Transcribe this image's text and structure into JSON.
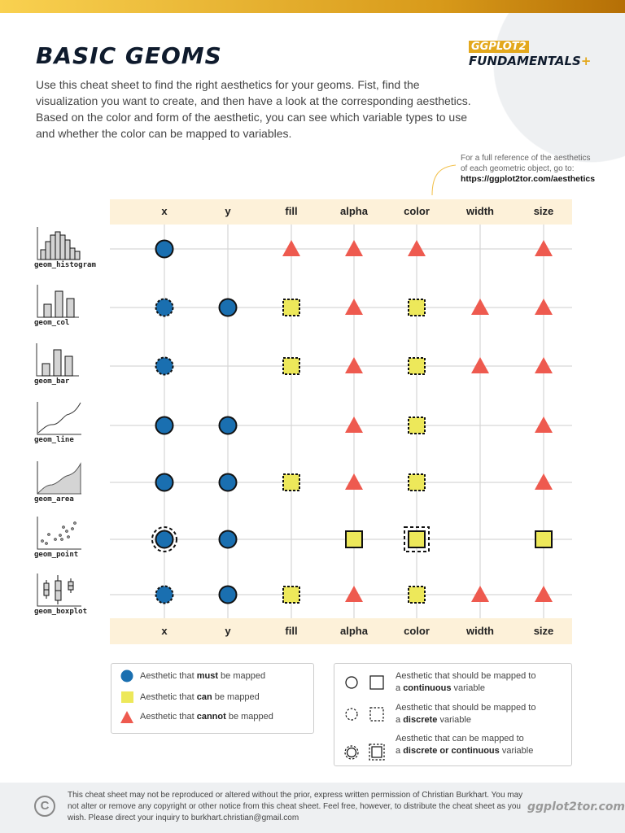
{
  "header": {
    "title": "BASIC GEOMS",
    "intro": "Use this cheat sheet to find the right aesthetics for your geoms. Fist, find the visualization you want to create, and then have a look at the corresponding aesthetics. Based on the color and form of the aesthetic, you can see which variable types to use and whether the color can be mapped to variables.",
    "logo_top": "GGPLOT2",
    "logo_bottom": "FUNDAMENTALS",
    "logo_plus": "+",
    "ref_line1": "For a full reference of the aesthetics",
    "ref_line2": "of each geometric object, go to:",
    "ref_url": "https://ggplot2tor.com/aesthetics"
  },
  "colors": {
    "must": "#1a6fb0",
    "can": "#ede85a",
    "cannot": "#ee5a4f",
    "header_band": "#fdf1d9",
    "accent": "#e3a81d"
  },
  "columns": [
    "x",
    "y",
    "fill",
    "alpha",
    "color",
    "width",
    "size"
  ],
  "rows": [
    {
      "geom": "geom_histogram",
      "icon": "histogram-icon",
      "cells": [
        "must:continuous",
        "",
        "cannot",
        "cannot",
        "cannot",
        "",
        "cannot"
      ]
    },
    {
      "geom": "geom_col",
      "icon": "column-chart-icon",
      "cells": [
        "must:discrete",
        "must:continuous",
        "can:discrete",
        "cannot",
        "can:discrete",
        "cannot",
        "cannot"
      ]
    },
    {
      "geom": "geom_bar",
      "icon": "bar-chart-icon",
      "cells": [
        "must:discrete",
        "",
        "can:discrete",
        "cannot",
        "can:discrete",
        "cannot",
        "cannot"
      ]
    },
    {
      "geom": "geom_line",
      "icon": "line-chart-icon",
      "cells": [
        "must:continuous",
        "must:continuous",
        "",
        "cannot",
        "can:discrete",
        "",
        "cannot"
      ]
    },
    {
      "geom": "geom_area",
      "icon": "area-chart-icon",
      "cells": [
        "must:continuous",
        "must:continuous",
        "can:discrete",
        "cannot",
        "can:discrete",
        "",
        "cannot"
      ]
    },
    {
      "geom": "geom_point",
      "icon": "scatter-plot-icon",
      "cells": [
        "must:both",
        "must:continuous",
        "",
        "can:continuous",
        "can:both",
        "",
        "can:continuous"
      ]
    },
    {
      "geom": "geom_boxplot",
      "icon": "boxplot-icon",
      "cells": [
        "must:discrete",
        "must:continuous",
        "can:discrete",
        "cannot",
        "can:discrete",
        "cannot",
        "cannot"
      ]
    }
  ],
  "legend": {
    "must": {
      "pre": "Aesthetic that ",
      "bold": "must",
      "post": " be mapped"
    },
    "can": {
      "pre": "Aesthetic that ",
      "bold": "can",
      "post": " be mapped"
    },
    "cannot": {
      "pre": "Aesthetic that ",
      "bold": "cannot",
      "post": " be mapped"
    },
    "continuous": {
      "l1": "Aesthetic that should be mapped to",
      "pre": "a ",
      "bold": "continuous",
      "post": " variable"
    },
    "discrete": {
      "l1": "Aesthetic that should be mapped to",
      "pre": "a ",
      "bold": "discrete",
      "post": " variable"
    },
    "both": {
      "l1": "Aesthetic that can be mapped to",
      "pre": "a ",
      "bold": "discrete or continuous",
      "post": " variable"
    }
  },
  "footer": {
    "text": "This cheat sheet may not be reproduced or altered without the prior, express written permission of Christian Burkhart. You may not alter or remove any copyright or other notice from this cheat sheet. Feel free, however, to distribute the cheat sheet as you wish. Please direct your inquiry to burkhart.christian@gmail.com",
    "copyright_symbol": "C",
    "site": "ggplot2tor.com"
  }
}
